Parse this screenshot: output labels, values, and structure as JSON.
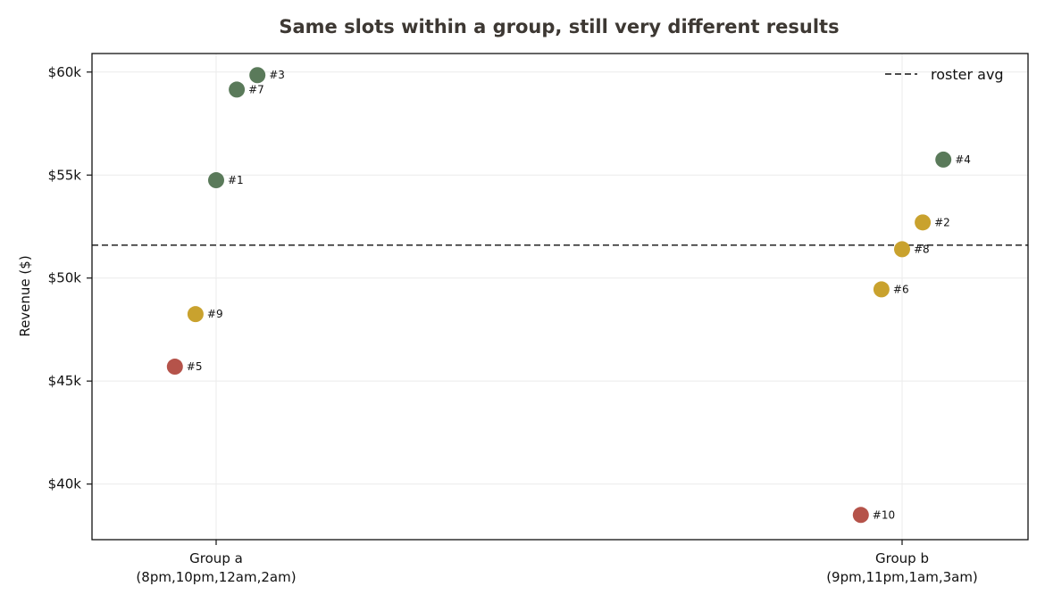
{
  "chart_data": {
    "type": "scatter",
    "title": "Same slots within a group, still very different results",
    "xlabel": "",
    "ylabel": "Revenue ($)",
    "categories": [
      {
        "line1": "Group a",
        "line2": "(8pm,10pm,12am,2am)"
      },
      {
        "line1": "Group b",
        "line2": "(9pm,11pm,1am,3am)"
      }
    ],
    "ylim": [
      37300,
      60900
    ],
    "y_ticks": [
      {
        "value": 40000,
        "label": "$40k"
      },
      {
        "value": 45000,
        "label": "$45k"
      },
      {
        "value": 50000,
        "label": "$50k"
      },
      {
        "value": 55000,
        "label": "$55k"
      },
      {
        "value": 60000,
        "label": "$60k"
      }
    ],
    "grid": true,
    "points": [
      {
        "label": "#5",
        "group": 0,
        "offset": -0.12,
        "value": 45700,
        "color": "#b5534a"
      },
      {
        "label": "#9",
        "group": 0,
        "offset": -0.06,
        "value": 48250,
        "color": "#c9a22e"
      },
      {
        "label": "#1",
        "group": 0,
        "offset": 0.0,
        "value": 54750,
        "color": "#5a7a5a"
      },
      {
        "label": "#7",
        "group": 0,
        "offset": 0.06,
        "value": 59150,
        "color": "#5a7a5a"
      },
      {
        "label": "#3",
        "group": 0,
        "offset": 0.12,
        "value": 59850,
        "color": "#5a7a5a"
      },
      {
        "label": "#10",
        "group": 1,
        "offset": -0.12,
        "value": 38500,
        "color": "#b5534a"
      },
      {
        "label": "#6",
        "group": 1,
        "offset": -0.06,
        "value": 49450,
        "color": "#c9a22e"
      },
      {
        "label": "#8",
        "group": 1,
        "offset": 0.0,
        "value": 51400,
        "color": "#c9a22e"
      },
      {
        "label": "#2",
        "group": 1,
        "offset": 0.06,
        "value": 52700,
        "color": "#c9a22e"
      },
      {
        "label": "#4",
        "group": 1,
        "offset": 0.12,
        "value": 55750,
        "color": "#5a7a5a"
      }
    ],
    "reference_line": {
      "label": "roster avg",
      "value": 51600,
      "color": "#333333",
      "style": "dashed"
    },
    "legend": {
      "position": "top-right",
      "entries": [
        "roster avg"
      ]
    }
  }
}
